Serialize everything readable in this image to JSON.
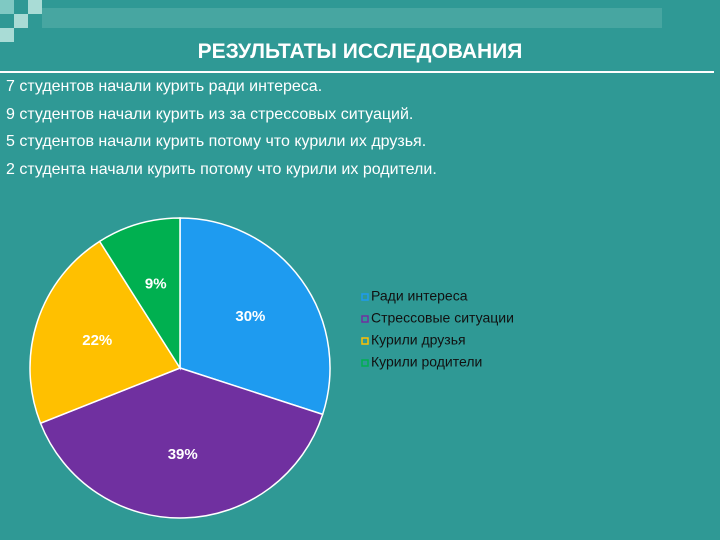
{
  "title": "РЕЗУЛЬТАТЫ ИССЛЕДОВАНИЯ",
  "lines": [
    "7 студентов начали курить ради интереса.",
    "9 студентов начали курить из за стрессовых ситуаций.",
    "5 студентов начали курить потому что курили их друзья.",
    "2 студента начали курить потому что курили их родители."
  ],
  "chart_data": {
    "type": "pie",
    "categories": [
      "Ради интереса",
      "Стрессовые ситуации",
      "Курили друзья",
      "Курили родители"
    ],
    "values": [
      30,
      39,
      22,
      9
    ],
    "value_labels": [
      "30%",
      "39%",
      "22%",
      "9%"
    ],
    "colors": [
      "#1e9bf0",
      "#7030a0",
      "#ffc000",
      "#00b050"
    ]
  }
}
